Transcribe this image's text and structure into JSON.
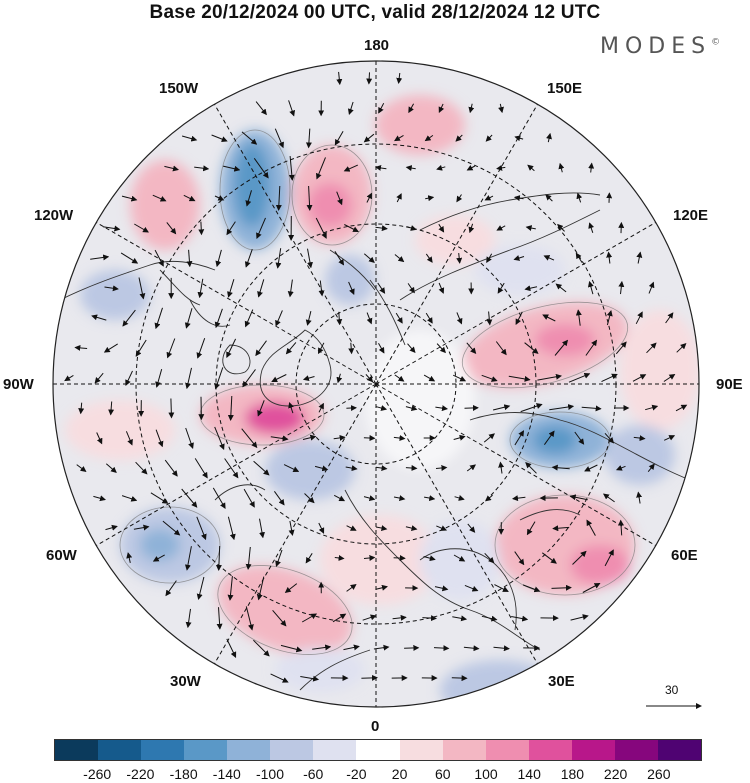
{
  "title": "Base 20/12/2024 00 UTC, valid 28/12/2024 12 UTC",
  "brand": "MODES",
  "brand_mark": "©",
  "lon_labels": {
    "top": "180",
    "bottom": "0",
    "left": "90W",
    "right": "90E",
    "nw_upper": "150W",
    "nw_lower": "120W",
    "ne_upper": "150E",
    "ne_lower": "120E",
    "sw_upper": "60W",
    "sw_lower": "30W",
    "se_upper": "60E",
    "se_lower": "30E"
  },
  "vector_scale": "30",
  "colorbar": {
    "colors": [
      "#0b3a5c",
      "#155a8c",
      "#2e78b0",
      "#5a98c7",
      "#8fb2d8",
      "#bcc8e3",
      "#dfe1f0",
      "#ffffff",
      "#f7dde0",
      "#f3b7c3",
      "#ef8eb0",
      "#e0519d",
      "#b8178a",
      "#86067d",
      "#4f0372"
    ],
    "ticks": [
      "-260",
      "-220",
      "-180",
      "-140",
      "-100",
      "-60",
      "-20",
      "20",
      "60",
      "100",
      "140",
      "180",
      "220",
      "260"
    ]
  },
  "anomaly_blobs": [
    {
      "name": "positive-anomaly-siberia",
      "sign": "positive",
      "strength": "strong"
    },
    {
      "name": "negative-anomaly-east-asia",
      "sign": "negative",
      "strength": "strong"
    },
    {
      "name": "positive-anomaly-greenland",
      "sign": "positive",
      "strength": "strong"
    },
    {
      "name": "negative-anomaly-gulf-of-alaska",
      "sign": "negative",
      "strength": "strong"
    },
    {
      "name": "positive-anomaly-bering-sea",
      "sign": "positive",
      "strength": "strong"
    },
    {
      "name": "negative-anomaly-north-atlantic",
      "sign": "negative",
      "strength": "moderate"
    },
    {
      "name": "positive-anomaly-europe",
      "sign": "positive",
      "strength": "moderate"
    },
    {
      "name": "positive-anomaly-central-asia",
      "sign": "positive",
      "strength": "moderate"
    }
  ]
}
